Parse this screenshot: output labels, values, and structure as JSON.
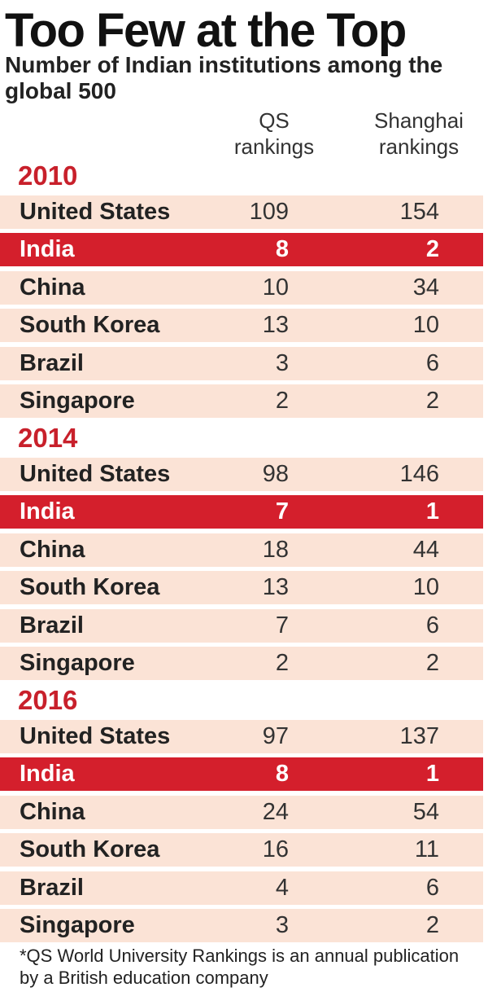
{
  "title": "Too Few at the Top",
  "subtitle": "Number of Indian institutions among the global 500",
  "columns": {
    "qs": [
      "QS",
      "rankings"
    ],
    "shanghai": [
      "Shanghai",
      "rankings"
    ]
  },
  "colors": {
    "accent": "#c8202b",
    "highlight_row": "#d41f2c",
    "row_bg": "#fbe3d6"
  },
  "chart_data": {
    "type": "table",
    "title": "Too Few at the Top",
    "subtitle": "Number of Indian institutions among the global 500",
    "columns": [
      "QS rankings",
      "Shanghai rankings"
    ],
    "groups": [
      {
        "year": "2010",
        "rows": [
          {
            "country": "United States",
            "qs": "109",
            "shanghai": "154",
            "highlight": false
          },
          {
            "country": "India",
            "qs": "8",
            "shanghai": "2",
            "highlight": true
          },
          {
            "country": "China",
            "qs": "10",
            "shanghai": "34",
            "highlight": false
          },
          {
            "country": "South Korea",
            "qs": "13",
            "shanghai": "10",
            "highlight": false
          },
          {
            "country": "Brazil",
            "qs": "3",
            "shanghai": "6",
            "highlight": false
          },
          {
            "country": "Singapore",
            "qs": "2",
            "shanghai": "2",
            "highlight": false
          }
        ]
      },
      {
        "year": "2014",
        "rows": [
          {
            "country": "United States",
            "qs": "98",
            "shanghai": "146",
            "highlight": false
          },
          {
            "country": "India",
            "qs": "7",
            "shanghai": "1",
            "highlight": true
          },
          {
            "country": "China",
            "qs": "18",
            "shanghai": "44",
            "highlight": false
          },
          {
            "country": "South Korea",
            "qs": "13",
            "shanghai": "10",
            "highlight": false
          },
          {
            "country": "Brazil",
            "qs": "7",
            "shanghai": "6",
            "highlight": false
          },
          {
            "country": "Singapore",
            "qs": "2",
            "shanghai": "2",
            "highlight": false
          }
        ]
      },
      {
        "year": "2016",
        "rows": [
          {
            "country": "United States",
            "qs": "97",
            "shanghai": "137",
            "highlight": false
          },
          {
            "country": "India",
            "qs": "8",
            "shanghai": "1",
            "highlight": true
          },
          {
            "country": "China",
            "qs": "24",
            "shanghai": "54",
            "highlight": false
          },
          {
            "country": "South Korea",
            "qs": "16",
            "shanghai": "11",
            "highlight": false
          },
          {
            "country": "Brazil",
            "qs": "4",
            "shanghai": "6",
            "highlight": false
          },
          {
            "country": "Singapore",
            "qs": "3",
            "shanghai": "2",
            "highlight": false
          }
        ]
      }
    ]
  },
  "footnote": "*QS World University Rankings is an annual publication by a British education company"
}
